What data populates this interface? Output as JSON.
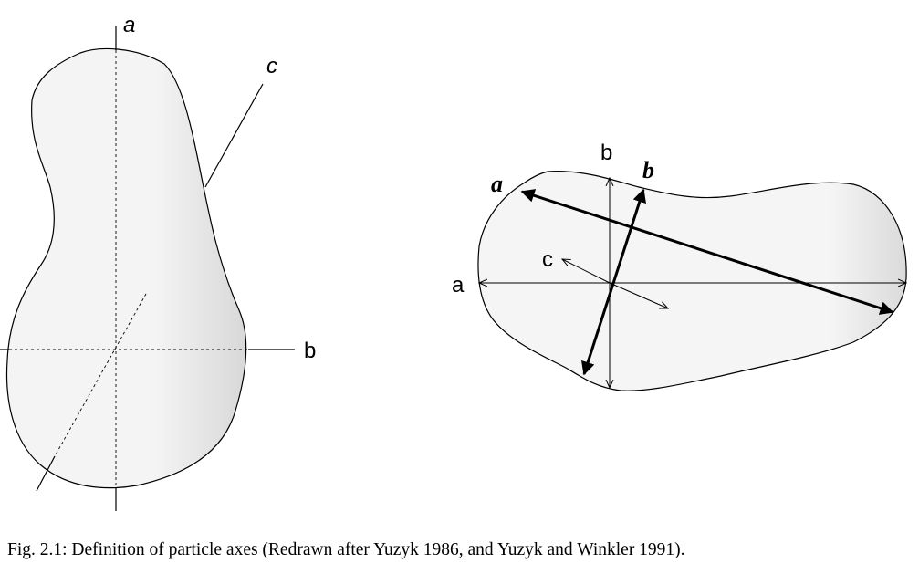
{
  "left_particle": {
    "label_a": "a",
    "label_b": "b",
    "label_c": "c"
  },
  "right_particle": {
    "label_a": "a",
    "label_b": "b",
    "label_c": "c",
    "label_bold_a": "a",
    "label_bold_b": "b"
  },
  "caption": "Fig. 2.1:  Definition of particle axes (Redrawn after Yuzyk 1986, and Yuzyk and Winkler 1991).",
  "colors": {
    "fill": "#f4f4f4",
    "shade": "#dcdcdc",
    "stroke": "#000000"
  }
}
